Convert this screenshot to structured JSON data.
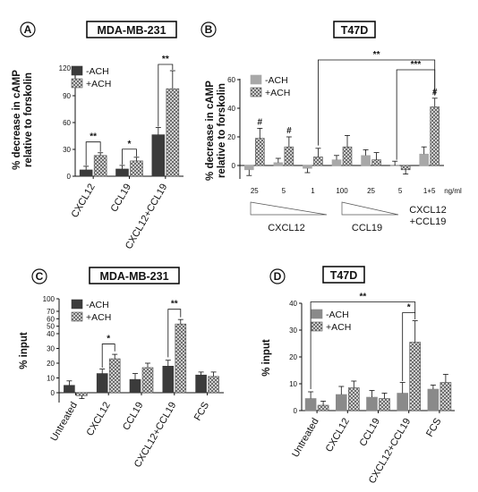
{
  "colors": {
    "dark_bar": "#3b3b3b",
    "mid_bar": "#8a8a8a",
    "light_bar": "#a8a8a8",
    "hatch_bar": "#8c8c8c",
    "title_box": "#000000"
  },
  "chart_data": [
    {
      "panel": "A",
      "title": "MDA-MB-231",
      "type": "bar",
      "ylabel": "% decrease in cAMP relative to forskolin",
      "ylim": [
        0,
        120
      ],
      "yticks": [
        "0",
        "30",
        "60",
        "90",
        "120"
      ],
      "categories": [
        "CXCL12",
        "CCL19",
        "CXCL12+CCL19"
      ],
      "series": [
        {
          "name": "-ACH",
          "values": [
            7,
            8,
            46
          ],
          "errors": [
            4,
            4,
            8
          ]
        },
        {
          "name": "+ACH",
          "values": [
            23,
            17,
            97
          ],
          "errors": [
            3,
            4,
            20
          ]
        }
      ],
      "annotations": [
        "**",
        "*",
        "**"
      ]
    },
    {
      "panel": "B",
      "title": "T47D",
      "type": "bar",
      "ylabel": "% decrease in cAMP relative to forskolin",
      "ylim": [
        -10,
        60
      ],
      "yticks": [
        "0",
        "20",
        "40",
        "60"
      ],
      "categories": [
        "25",
        "5",
        "1",
        "100",
        "25",
        "5",
        "1+5"
      ],
      "unit_label": "ng/ml",
      "group_labels": [
        "CXCL12",
        "CCL19",
        "CXCL12\n+CCL19"
      ],
      "series": [
        {
          "name": "-ACH",
          "values": [
            -3,
            2,
            -2,
            4,
            7,
            0,
            8
          ],
          "errors": [
            4,
            3,
            3,
            3,
            4,
            3,
            5
          ]
        },
        {
          "name": "+ACH",
          "values": [
            19,
            13,
            6,
            13,
            4,
            -3,
            41
          ],
          "errors": [
            7,
            7,
            6,
            8,
            5,
            3,
            6
          ]
        }
      ],
      "annotations": [
        "#",
        "#",
        "#",
        "**",
        "***"
      ]
    },
    {
      "panel": "C",
      "title": "MDA-MB-231",
      "type": "bar",
      "ylabel": "% input",
      "yticks": [
        "0",
        "10",
        "20",
        "30",
        "40",
        "50",
        "60",
        "70",
        "100"
      ],
      "categories": [
        "Untreated",
        "CXCL12",
        "CCL19",
        "CXCL12+CCL19",
        "FCS"
      ],
      "series": [
        {
          "name": "-ACH",
          "values": [
            5,
            13,
            9,
            18,
            12
          ],
          "errors": [
            3,
            3,
            4,
            4,
            2
          ]
        },
        {
          "name": "+ACH",
          "values": [
            -2,
            23,
            17,
            53,
            11
          ],
          "errors": [
            2,
            3,
            3,
            6,
            3
          ]
        }
      ],
      "annotations": [
        "*",
        "**"
      ]
    },
    {
      "panel": "D",
      "title": "T47D",
      "type": "bar",
      "ylabel": "% input",
      "ylim": [
        0,
        40
      ],
      "yticks": [
        "0",
        "10",
        "20",
        "30",
        "40"
      ],
      "categories": [
        "Untreated",
        "CXCL12",
        "CCL19",
        "CXCL12+CCL19",
        "FCS"
      ],
      "series": [
        {
          "name": "-ACH",
          "values": [
            4.5,
            6,
            5,
            6.5,
            8
          ],
          "errors": [
            2.5,
            3,
            2.5,
            4,
            1.5
          ]
        },
        {
          "name": "+ACH",
          "values": [
            2,
            8.5,
            4.5,
            25.5,
            10.5
          ],
          "errors": [
            1.5,
            2.5,
            2,
            8,
            3
          ]
        }
      ],
      "annotations": [
        "*",
        "**"
      ]
    }
  ]
}
